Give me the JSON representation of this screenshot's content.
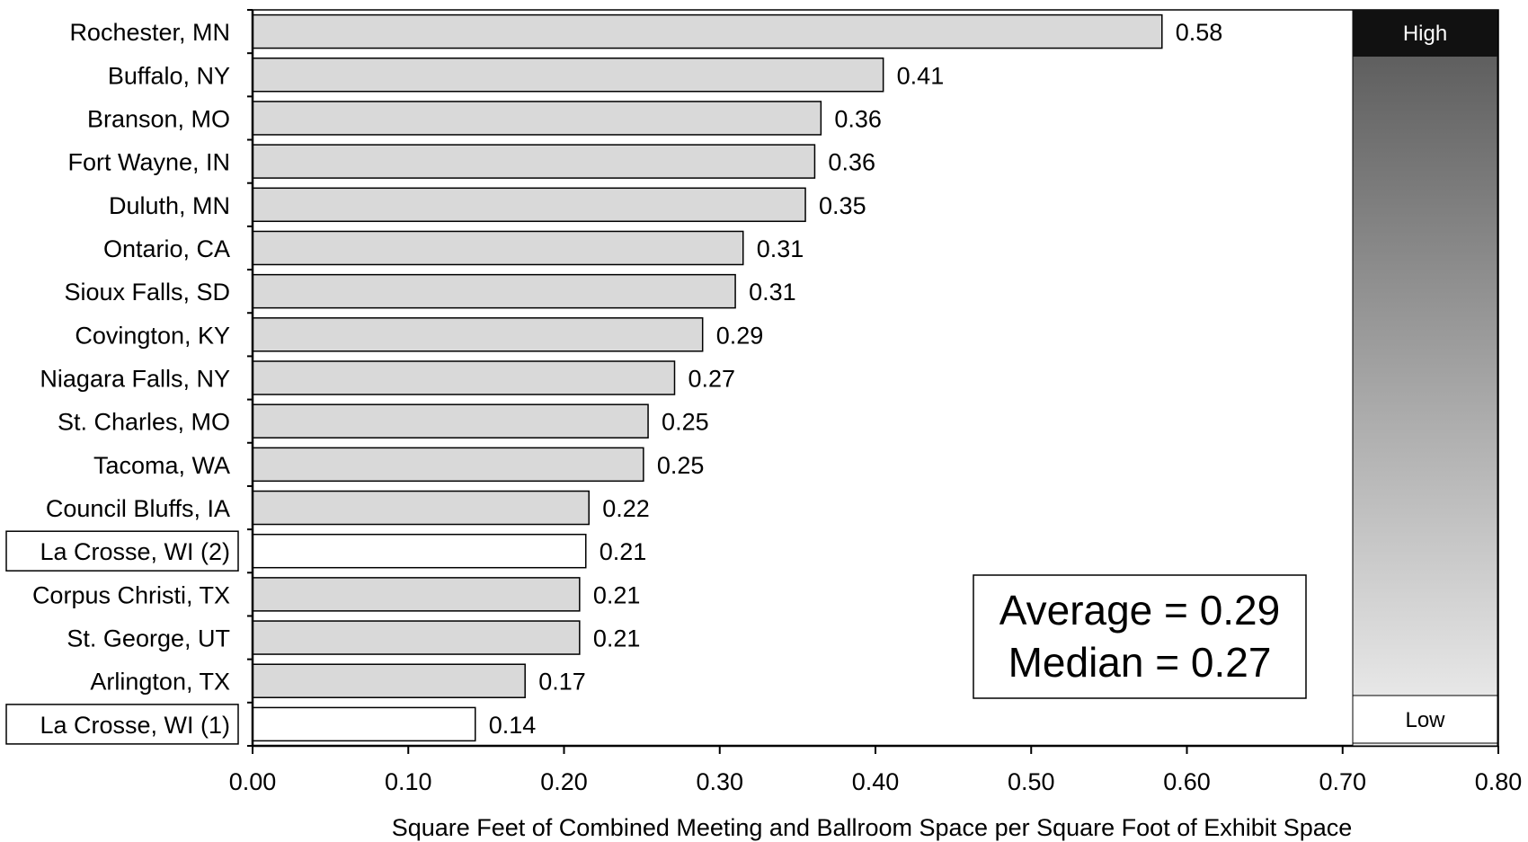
{
  "chart_data": {
    "type": "bar",
    "orientation": "horizontal",
    "categories": [
      "Rochester, MN",
      "Buffalo, NY",
      "Branson, MO",
      "Fort Wayne, IN",
      "Duluth, MN",
      "Ontario, CA",
      "Sioux Falls, SD",
      "Covington, KY",
      "Niagara Falls, NY",
      "St. Charles, MO",
      "Tacoma, WA",
      "Council Bluffs, IA",
      "La Crosse, WI (2)",
      "Corpus Christi, TX",
      "St. George, UT",
      "Arlington, TX",
      "La Crosse, WI (1)"
    ],
    "values": [
      0.584,
      0.405,
      0.365,
      0.361,
      0.355,
      0.315,
      0.31,
      0.289,
      0.271,
      0.254,
      0.251,
      0.216,
      0.214,
      0.21,
      0.21,
      0.175,
      0.143
    ],
    "value_labels": [
      "0.58",
      "0.41",
      "0.36",
      "0.36",
      "0.35",
      "0.31",
      "0.31",
      "0.29",
      "0.27",
      "0.25",
      "0.25",
      "0.22",
      "0.21",
      "0.21",
      "0.21",
      "0.17",
      "0.14"
    ],
    "highlighted": [
      "La Crosse, WI (2)",
      "La Crosse, WI (1)"
    ],
    "xlabel": "Square Feet of Combined Meeting and Ballroom Space per Square Foot of Exhibit Space",
    "xlim": [
      0,
      0.8
    ],
    "xticks": [
      "0.00",
      "0.10",
      "0.20",
      "0.30",
      "0.40",
      "0.50",
      "0.60",
      "0.70",
      "0.80"
    ],
    "grid": false,
    "annotation": {
      "average": "Average = 0.29",
      "median": "Median = 0.27"
    },
    "scale_bar": {
      "high": "High",
      "low": "Low"
    },
    "colors": {
      "bar": "#d9d9d9",
      "highlight_bar": "#ffffff",
      "outline": "#000000",
      "scale_top": "#111111"
    }
  }
}
